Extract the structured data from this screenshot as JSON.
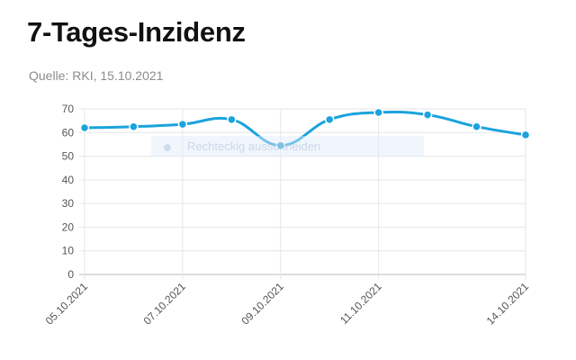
{
  "title": "7-Tages-Inzidenz",
  "subtitle": "Quelle: RKI, 15.10.2021",
  "watermark": {
    "label": "Rechteckig ausschneiden",
    "icon": "crop-icon"
  },
  "colors": {
    "line": "#1aa3dd",
    "grid": "#e6e6e6",
    "axis": "#bdbdbd",
    "title": "#111111",
    "subtitle": "#8c8c8c"
  },
  "chart_data": {
    "type": "line",
    "title": "7-Tages-Inzidenz",
    "subtitle": "Quelle: RKI, 15.10.2021",
    "xlabel": "",
    "ylabel": "",
    "x": [
      "05.10.2021",
      "06.10.2021",
      "07.10.2021",
      "08.10.2021",
      "09.10.2021",
      "10.10.2021",
      "11.10.2021",
      "12.10.2021",
      "13.10.2021",
      "14.10.2021"
    ],
    "x_tick_labels": [
      "05.10.2021",
      "07.10.2021",
      "09.10.2021",
      "11.10.2021",
      "14.10.2021"
    ],
    "series": [
      {
        "values": [
          62,
          62.5,
          63.5,
          65.5,
          54.5,
          65.5,
          68.5,
          67.5,
          62.5,
          59
        ]
      }
    ],
    "ylim": [
      0,
      70
    ],
    "y_ticks": [
      0,
      10,
      20,
      30,
      40,
      50,
      60,
      70
    ],
    "grid": true,
    "legend": "none"
  }
}
